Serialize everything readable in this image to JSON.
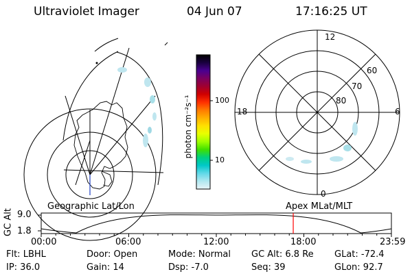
{
  "header": {
    "instrument": "Ultraviolet Imager",
    "date": "04 Jun 07",
    "time": "17:16:25 UT"
  },
  "colorbar": {
    "unit_label": "photon cm⁻²s⁻¹",
    "ticks": [
      "100",
      "10"
    ],
    "colors": [
      "#000000",
      "#1a0040",
      "#4a0090",
      "#7a0060",
      "#a00030",
      "#d00000",
      "#ff3000",
      "#ff7a00",
      "#ffb000",
      "#ffe000",
      "#e8ff00",
      "#a0ff00",
      "#40e000",
      "#00d080",
      "#00c8c8",
      "#60d8e8",
      "#b0e8f0",
      "#e8f4f8"
    ]
  },
  "polar_plot": {
    "lat_labels": [
      "60",
      "70",
      "80"
    ],
    "mlt_labels": [
      "12",
      "18",
      "6",
      "0"
    ]
  },
  "timeline": {
    "left_label": "Geographic Lat/Lon",
    "right_label": "Apex MLat/MLT",
    "y_axis_label": "GC Alt",
    "y_ticks": [
      "9.0",
      "1.8"
    ],
    "x_ticks": [
      "00:00",
      "06:00",
      "12:00",
      "18:00",
      "23:59"
    ],
    "current_time_fraction": 0.7197,
    "marker_color": "#ff0000"
  },
  "footer": {
    "flt": "Flt: LBHL",
    "ip": "IP: 36.0",
    "door": "Door: Open",
    "gain": "Gain: 14",
    "mode": "Mode: Normal",
    "dsp": "Dsp:   -7.0",
    "gc_alt": "GC Alt: 6.8 Re",
    "seq": "Seq: 39",
    "glat": "GLat: -72.4",
    "glon": "GLon:  92.7"
  }
}
